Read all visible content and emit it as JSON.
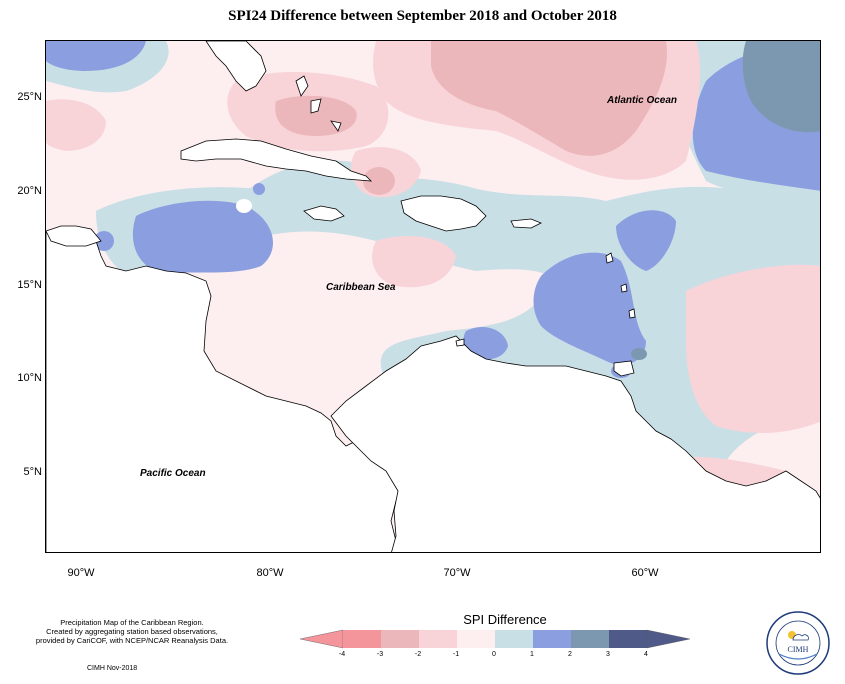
{
  "title": "SPI24 Difference between September 2018 and October 2018",
  "map": {
    "labels": {
      "atlantic": "Atlantic Ocean",
      "caribbean": "Caribbean Sea",
      "pacific": "Pacific Ocean"
    },
    "lat_ticks": [
      "25°N",
      "20°N",
      "15°N",
      "10°N",
      "5°N"
    ],
    "lon_ticks": [
      "90°W",
      "80°W",
      "70°W",
      "60°W"
    ]
  },
  "legend": {
    "title": "SPI Difference",
    "ticks": [
      "-4",
      "-3",
      "-2",
      "-1",
      "0",
      "1",
      "2",
      "3",
      "4"
    ],
    "colors": [
      "#f4949b",
      "#ebb7bb",
      "#f8d4d9",
      "#fdeef0",
      "#c9dfe6",
      "#8b9fe0",
      "#7c98b0",
      "#505a88"
    ]
  },
  "credits": {
    "line1": "Precipitation Map of the Caribbean Region.",
    "line2": "Created by aggregating station based observations,",
    "line3": "provided by CariCOF, with NCEP/NCAR Reanalysis Data.",
    "date": "CIMH Nov-2018"
  },
  "logo": {
    "text": "CIMH"
  }
}
